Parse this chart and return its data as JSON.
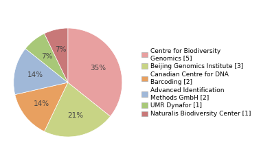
{
  "labels": [
    "Centre for Biodiversity\nGenomics [5]",
    "Beijing Genomics Institute [3]",
    "Canadian Centre for DNA\nBarcoding [2]",
    "Advanced Identification\nMethods GmbH [2]",
    "UMR Dynafor [1]",
    "Naturalis Biodiversity Center [1]"
  ],
  "values": [
    35,
    21,
    14,
    14,
    7,
    7
  ],
  "colors": [
    "#e8a0a0",
    "#c8d485",
    "#e8a060",
    "#a0b8d8",
    "#a8c878",
    "#c87878"
  ],
  "pct_labels": [
    "35%",
    "21%",
    "14%",
    "14%",
    "7%",
    "7%"
  ],
  "legend_fontsize": 6.5,
  "pct_fontsize": 7.5,
  "background_color": "#ffffff"
}
